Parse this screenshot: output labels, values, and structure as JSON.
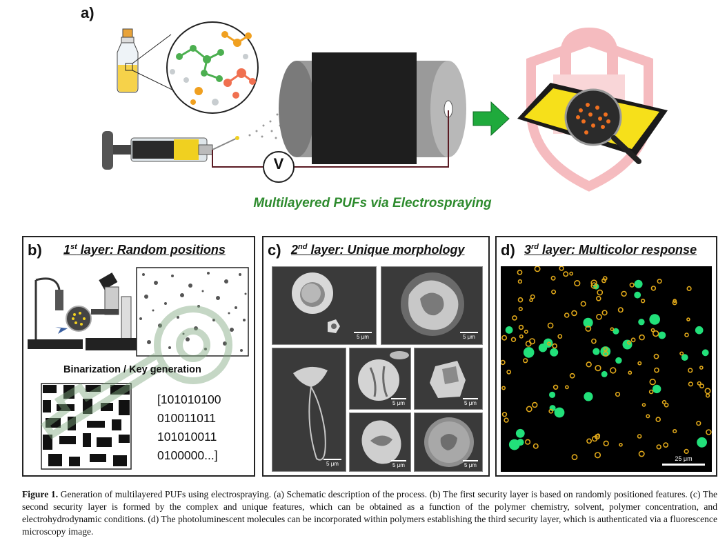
{
  "panel_a": {
    "letter": "a)",
    "voltage_label": "V",
    "subtitle": "Multilayered PUFs via Electrospraying"
  },
  "panel_b": {
    "letter": "b)",
    "title_ord": "1",
    "title_sup": "st",
    "title_rest": " layer: Random positions",
    "binarization_label": "Binarization / Key generation",
    "key_lines": [
      "[101010100",
      "010011011",
      "101010011",
      "0100000...]"
    ]
  },
  "panel_c": {
    "letter": "c)",
    "title_ord": "2",
    "title_sup": "nd",
    "title_rest": " layer: Unique morphology",
    "scale_label": "5 μm"
  },
  "panel_d": {
    "letter": "d)",
    "title_ord": "3",
    "title_sup": "rd",
    "title_rest": " layer: Multicolor response",
    "scale_label": "25 μm"
  },
  "caption": {
    "label": "Figure 1.",
    "text": " Generation of multilayered PUFs using electrospraying. (a) Schematic description of the process. (b) The first security layer is based on randomly positioned features. (c) The second security layer is formed by the complex and unique features, which can be obtained as a function of the polymer chemistry, solvent, polymer concentration, and electrohydrodynamic conditions. (d) The photoluminescent molecules can be incorporated within polymers establishing the third security layer, which is authenticated via a fluorescence microscopy image."
  },
  "colors": {
    "accent_green": "#2e8b2e",
    "arrow_green": "#1faa3c",
    "lock_pink": "#f2a8ad",
    "fluor_green": "#22e07a",
    "fluor_yellow": "#e0a81a"
  }
}
